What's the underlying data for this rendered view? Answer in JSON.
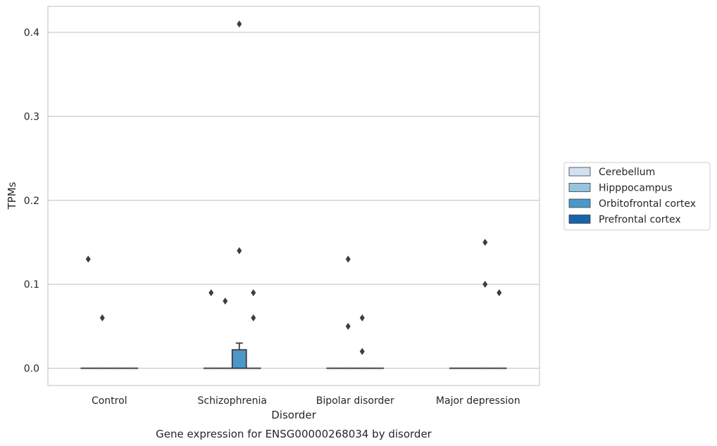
{
  "chart_data": {
    "type": "box",
    "title": "Gene expression for ENSG00000268034 by disorder",
    "xlabel": "Disorder",
    "ylabel": "TPMs",
    "ylim": [
      -0.02,
      0.43
    ],
    "yticks": [
      0.0,
      0.1,
      0.2,
      0.3,
      0.4
    ],
    "ytick_labels": [
      "0.0",
      "0.1",
      "0.2",
      "0.3",
      "0.4"
    ],
    "grid": "horizontal",
    "legend_position": "right",
    "categories": [
      "Control",
      "Schizophrenia",
      "Bipolar disorder",
      "Major depression"
    ],
    "series": [
      {
        "name": "Cerebellum",
        "color": "#d0e1f2"
      },
      {
        "name": "Hipppocampus",
        "color": "#94c4df"
      },
      {
        "name": "Orbitofrontal cortex",
        "color": "#4a98c9"
      },
      {
        "name": "Prefrontal cortex",
        "color": "#1764ab"
      }
    ],
    "boxes": [
      {
        "category": "Control",
        "series": "Cerebellum",
        "q1": 0,
        "median": 0,
        "q3": 0,
        "whislo": 0,
        "whishi": 0,
        "fliers": [
          0.13
        ]
      },
      {
        "category": "Control",
        "series": "Hipppocampus",
        "q1": 0,
        "median": 0,
        "q3": 0,
        "whislo": 0,
        "whishi": 0,
        "fliers": [
          0.06
        ]
      },
      {
        "category": "Control",
        "series": "Orbitofrontal cortex",
        "q1": 0,
        "median": 0,
        "q3": 0,
        "whislo": 0,
        "whishi": 0,
        "fliers": []
      },
      {
        "category": "Control",
        "series": "Prefrontal cortex",
        "q1": 0,
        "median": 0,
        "q3": 0,
        "whislo": 0,
        "whishi": 0,
        "fliers": []
      },
      {
        "category": "Schizophrenia",
        "series": "Cerebellum",
        "q1": 0,
        "median": 0,
        "q3": 0,
        "whislo": 0,
        "whishi": 0,
        "fliers": [
          0.09
        ]
      },
      {
        "category": "Schizophrenia",
        "series": "Hipppocampus",
        "q1": 0,
        "median": 0,
        "q3": 0,
        "whislo": 0,
        "whishi": 0,
        "fliers": [
          0.08
        ]
      },
      {
        "category": "Schizophrenia",
        "series": "Orbitofrontal cortex",
        "q1": 0,
        "median": 0,
        "q3": 0.022,
        "whislo": 0,
        "whishi": 0.03,
        "fliers": [
          0.41,
          0.14
        ]
      },
      {
        "category": "Schizophrenia",
        "series": "Prefrontal cortex",
        "q1": 0,
        "median": 0,
        "q3": 0,
        "whislo": 0,
        "whishi": 0,
        "fliers": [
          0.09,
          0.06
        ]
      },
      {
        "category": "Bipolar disorder",
        "series": "Cerebellum",
        "q1": 0,
        "median": 0,
        "q3": 0,
        "whislo": 0,
        "whishi": 0,
        "fliers": []
      },
      {
        "category": "Bipolar disorder",
        "series": "Hipppocampus",
        "q1": 0,
        "median": 0,
        "q3": 0,
        "whislo": 0,
        "whishi": 0,
        "fliers": [
          0.13,
          0.05
        ]
      },
      {
        "category": "Bipolar disorder",
        "series": "Orbitofrontal cortex",
        "q1": 0,
        "median": 0,
        "q3": 0,
        "whislo": 0,
        "whishi": 0,
        "fliers": [
          0.06,
          0.02
        ]
      },
      {
        "category": "Bipolar disorder",
        "series": "Prefrontal cortex",
        "q1": 0,
        "median": 0,
        "q3": 0,
        "whislo": 0,
        "whishi": 0,
        "fliers": []
      },
      {
        "category": "Major depression",
        "series": "Cerebellum",
        "q1": 0,
        "median": 0,
        "q3": 0,
        "whislo": 0,
        "whishi": 0,
        "fliers": []
      },
      {
        "category": "Major depression",
        "series": "Hipppocampus",
        "q1": 0,
        "median": 0,
        "q3": 0,
        "whislo": 0,
        "whishi": 0,
        "fliers": []
      },
      {
        "category": "Major depression",
        "series": "Orbitofrontal cortex",
        "q1": 0,
        "median": 0,
        "q3": 0,
        "whislo": 0,
        "whishi": 0,
        "fliers": [
          0.15,
          0.1
        ]
      },
      {
        "category": "Major depression",
        "series": "Prefrontal cortex",
        "q1": 0,
        "median": 0,
        "q3": 0,
        "whislo": 0,
        "whishi": 0,
        "fliers": [
          0.09
        ]
      }
    ]
  }
}
